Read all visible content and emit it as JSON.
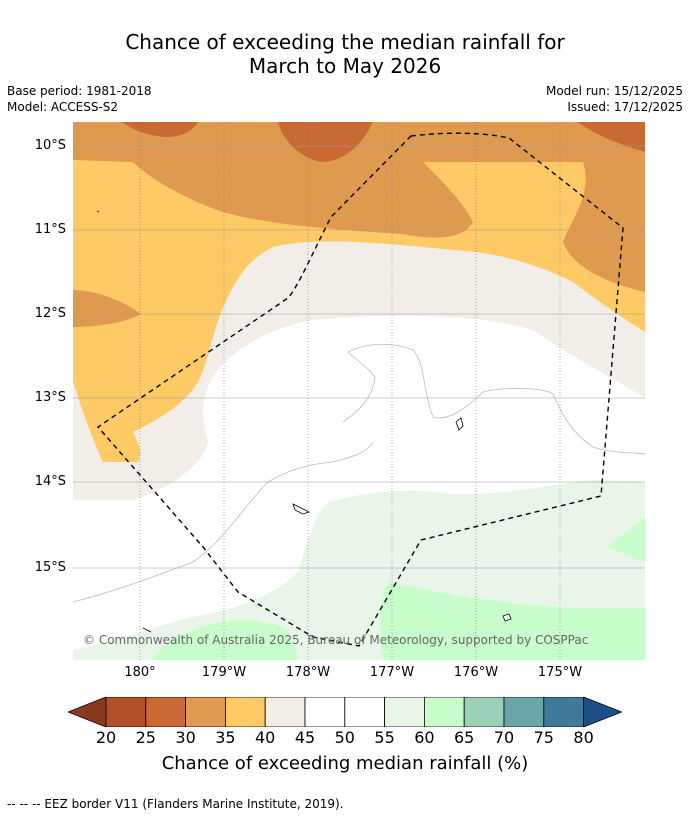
{
  "title": {
    "line1": "Chance of exceeding the median rainfall for",
    "line2": "March to May 2026"
  },
  "meta": {
    "base_period": "Base period: 1981-2018",
    "model": "Model: ACCESS-S2",
    "model_run": "Model run: 15/12/2025",
    "issued": "Issued: 17/12/2025"
  },
  "map": {
    "lat_labels": [
      "10°S",
      "11°S",
      "12°S",
      "13°S",
      "14°S",
      "15°S"
    ],
    "lon_labels": [
      "180°",
      "179°W",
      "178°W",
      "177°W",
      "176°W",
      "175°W"
    ],
    "copyright": "© Commonwealth of Australia 2025, Bureau of Meteorology, supported by COSPPac"
  },
  "colorbar": {
    "ticks": [
      "20",
      "25",
      "30",
      "35",
      "40",
      "45",
      "50",
      "55",
      "60",
      "65",
      "70",
      "75",
      "80"
    ],
    "colors": [
      "#8b3a1e",
      "#b2502a",
      "#c96a35",
      "#e09a4f",
      "#fdca66",
      "#f2ede6",
      "#ffffff",
      "#ffffff",
      "#e9f5e9",
      "#c8fdcc",
      "#9ad1b8",
      "#6aa6a7",
      "#3f7a9a",
      "#1b4f86"
    ],
    "label": "Chance of exceeding median rainfall (%)"
  },
  "footnote": "--  --  -- EEZ border V11 (Flanders Marine Institute, 2019)."
}
